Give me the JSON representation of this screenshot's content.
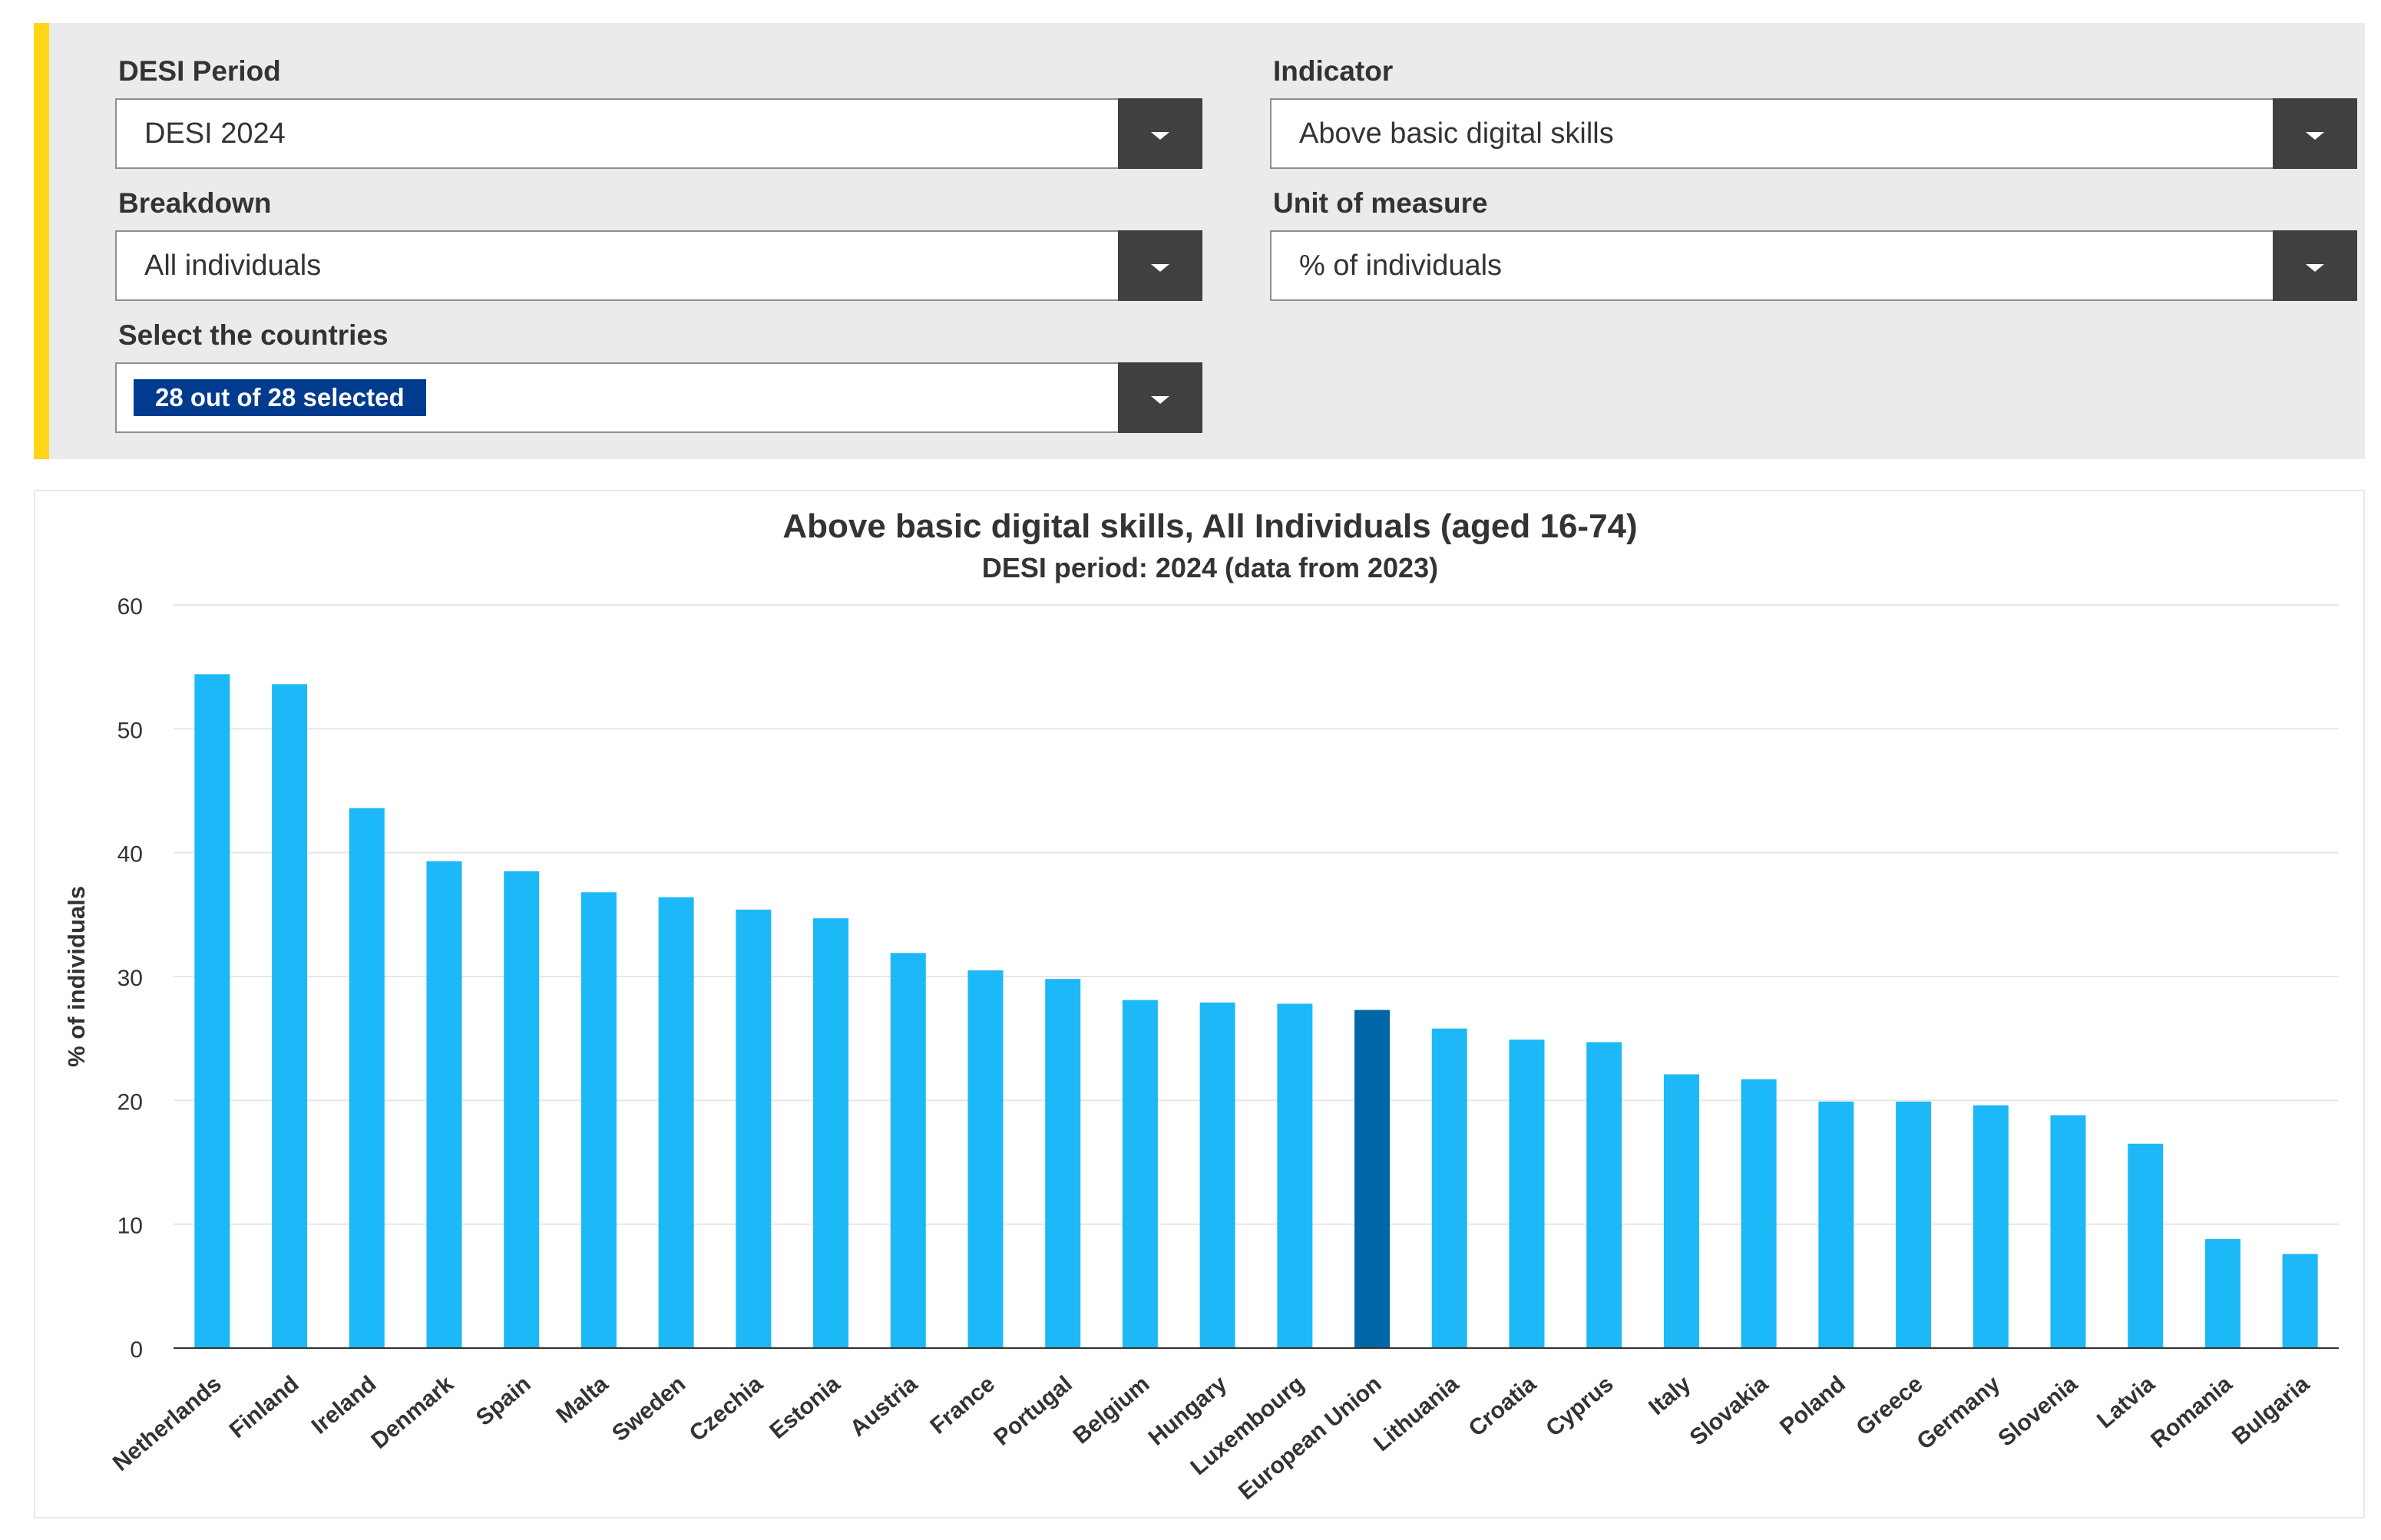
{
  "filters": {
    "desi_period": {
      "label": "DESI Period",
      "value": "DESI 2024"
    },
    "indicator": {
      "label": "Indicator",
      "value": "Above basic digital skills"
    },
    "breakdown": {
      "label": "Breakdown",
      "value": "All individuals"
    },
    "unit": {
      "label": "Unit of measure",
      "value": "% of individuals"
    },
    "countries": {
      "label": "Select the countries",
      "value": "28 out of 28 selected"
    }
  },
  "colors": {
    "accent_stripe": "#ffd617",
    "badge": "#003b8f",
    "bar": "#1cb8f8",
    "bar_highlight": "#0066a8",
    "dropdown_button": "#404040"
  },
  "chart_data": {
    "type": "bar",
    "title": "Above basic digital skills, All Individuals (aged 16-74)",
    "subtitle": "DESI period: 2024 (data from 2023)",
    "xlabel": "",
    "ylabel": "% of individuals",
    "ylim": [
      0,
      60
    ],
    "yticks": [
      0,
      10,
      20,
      30,
      40,
      50,
      60
    ],
    "grid": true,
    "highlight": "European Union",
    "categories": [
      "Netherlands",
      "Finland",
      "Ireland",
      "Denmark",
      "Spain",
      "Malta",
      "Sweden",
      "Czechia",
      "Estonia",
      "Austria",
      "France",
      "Portugal",
      "Belgium",
      "Hungary",
      "Luxembourg",
      "European Union",
      "Lithuania",
      "Croatia",
      "Cyprus",
      "Italy",
      "Slovakia",
      "Poland",
      "Greece",
      "Germany",
      "Slovenia",
      "Latvia",
      "Romania",
      "Bulgaria"
    ],
    "values": [
      54.4,
      53.6,
      43.6,
      39.3,
      38.5,
      36.8,
      36.4,
      35.4,
      34.7,
      31.9,
      30.5,
      29.8,
      28.1,
      27.9,
      27.8,
      27.3,
      25.8,
      24.9,
      24.7,
      22.1,
      21.7,
      19.9,
      19.9,
      19.6,
      18.8,
      16.5,
      8.8,
      7.6
    ]
  }
}
